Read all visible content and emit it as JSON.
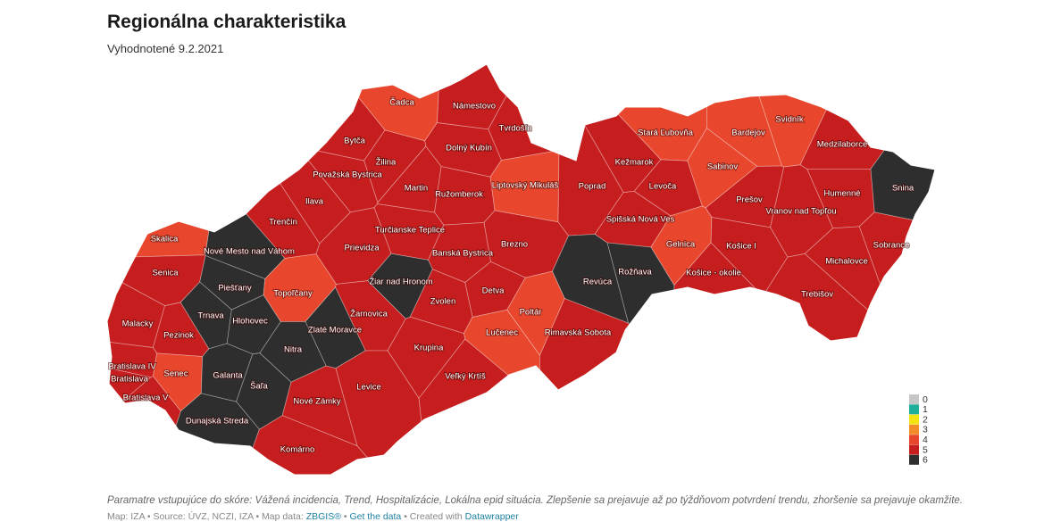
{
  "header": {
    "title": "Regionálna charakteristika",
    "subtitle": "Vyhodnotené 9.2.2021"
  },
  "map": {
    "districts": [
      {
        "name": "Čadca",
        "level": 4
      },
      {
        "name": "Námestovo",
        "level": 5
      },
      {
        "name": "Tvrdošín",
        "level": 5
      },
      {
        "name": "Bytča",
        "level": 5
      },
      {
        "name": "Žilina",
        "level": 5
      },
      {
        "name": "Dolný Kubín",
        "level": 5
      },
      {
        "name": "Považská Bystrica",
        "level": 5
      },
      {
        "name": "Martin",
        "level": 5
      },
      {
        "name": "Ružomberok",
        "level": 5
      },
      {
        "name": "Liptovský Mikuláš",
        "level": 4
      },
      {
        "name": "Poprad",
        "level": 5
      },
      {
        "name": "Kežmarok",
        "level": 5
      },
      {
        "name": "Stará Ľubovňa",
        "level": 4
      },
      {
        "name": "Bardejov",
        "level": 4
      },
      {
        "name": "Svidník",
        "level": 4
      },
      {
        "name": "Medzilaborce",
        "level": 5
      },
      {
        "name": "Snina",
        "level": 6
      },
      {
        "name": "Sabinov",
        "level": 4
      },
      {
        "name": "Levoča",
        "level": 5
      },
      {
        "name": "Prešov",
        "level": 5
      },
      {
        "name": "Humenné",
        "level": 5
      },
      {
        "name": "Vranov nad Topľou",
        "level": 5
      },
      {
        "name": "Spišská Nová Ves",
        "level": 5
      },
      {
        "name": "Gelnica",
        "level": 4
      },
      {
        "name": "Košice I",
        "level": 5
      },
      {
        "name": "Sobrance",
        "level": 5
      },
      {
        "name": "Michalovce",
        "level": 5
      },
      {
        "name": "Košice - okolie",
        "level": 5
      },
      {
        "name": "Trebišov",
        "level": 5
      },
      {
        "name": "Rožňava",
        "level": 6
      },
      {
        "name": "Revúca",
        "level": 6
      },
      {
        "name": "Brezno",
        "level": 5
      },
      {
        "name": "Ilava",
        "level": 5
      },
      {
        "name": "Trenčín",
        "level": 5
      },
      {
        "name": "Turčianske Teplice",
        "level": 5
      },
      {
        "name": "Skalica",
        "level": 4
      },
      {
        "name": "Nové Mesto nad Váhom",
        "level": 6
      },
      {
        "name": "Prievidza",
        "level": 5
      },
      {
        "name": "Banská Bystrica",
        "level": 5
      },
      {
        "name": "Senica",
        "level": 5
      },
      {
        "name": "Piešťany",
        "level": 6
      },
      {
        "name": "Topoľčany",
        "level": 4
      },
      {
        "name": "Žiar nad Hronom",
        "level": 6
      },
      {
        "name": "Detva",
        "level": 5
      },
      {
        "name": "Poltár",
        "level": 4
      },
      {
        "name": "Malacky",
        "level": 5
      },
      {
        "name": "Trnava",
        "level": 6
      },
      {
        "name": "Hlohovec",
        "level": 6
      },
      {
        "name": "Žarnovica",
        "level": 5
      },
      {
        "name": "Zvolen",
        "level": 5
      },
      {
        "name": "Lučenec",
        "level": 4
      },
      {
        "name": "Rimavská Sobota",
        "level": 5
      },
      {
        "name": "Pezinok",
        "level": 5
      },
      {
        "name": "Zlaté Moravce",
        "level": 6
      },
      {
        "name": "Nitra",
        "level": 6
      },
      {
        "name": "Krupina",
        "level": 5
      },
      {
        "name": "Bratislava IV",
        "level": 5
      },
      {
        "name": "Senec",
        "level": 4
      },
      {
        "name": "Bratislava",
        "level": 5
      },
      {
        "name": "Bratislava V",
        "level": 5
      },
      {
        "name": "Galanta",
        "level": 6
      },
      {
        "name": "Šaľa",
        "level": 6
      },
      {
        "name": "Levice",
        "level": 5
      },
      {
        "name": "Veľký Krtíš",
        "level": 5
      },
      {
        "name": "Nové Zámky",
        "level": 5
      },
      {
        "name": "Dunajská Streda",
        "level": 6
      },
      {
        "name": "Komárno",
        "level": 5
      }
    ]
  },
  "legend": {
    "levels": [
      0,
      1,
      2,
      3,
      4,
      5,
      6
    ],
    "colors": [
      "#c6c6c6",
      "#1fae9a",
      "#f5e312",
      "#f28c28",
      "#e8472d",
      "#c61e1e",
      "#2e2e2e"
    ]
  },
  "footer": {
    "note": "Paramatre vstupujúce do skóre: Vážená incidencia, Trend, Hospitalizácie, Lokálna epid situácia. Zlepšenie sa prejavuje až po týždňovom potvrdení trendu, zhoršenie sa prejavuje okamžite.",
    "source": [
      "Map: IZA • Source: ÚVZ, NCZI, IZA • Map data:",
      "ZBGIS®",
      "•",
      "Get the data",
      "• Created with",
      "Datawrapper"
    ]
  }
}
